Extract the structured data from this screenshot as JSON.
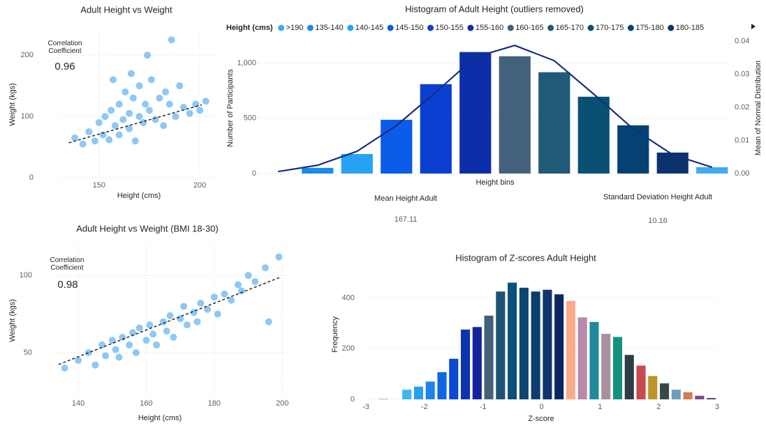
{
  "chart_data": [
    {
      "type": "scatter",
      "title": "Adult Height vs Weight",
      "x_label": "Height (cms)",
      "y_label": "Weight (kgs)",
      "annotation": "Correlation Coefficient",
      "annotation_value": 0.96,
      "color": "#8dc8f6",
      "grid": true,
      "xlim": [
        130,
        210
      ],
      "xticks": [
        150,
        200
      ],
      "ylim": [
        0,
        240
      ],
      "yticks": [
        0,
        100,
        200
      ],
      "x": [
        138,
        142,
        145,
        148,
        150,
        152,
        153,
        155,
        156,
        158,
        160,
        160,
        162,
        163,
        165,
        165,
        167,
        168,
        170,
        170,
        172,
        173,
        175,
        176,
        178,
        180,
        182,
        183,
        185,
        188,
        190,
        192,
        195,
        198,
        200,
        203,
        157,
        166,
        174,
        186
      ],
      "y": [
        65,
        55,
        75,
        60,
        90,
        70,
        100,
        62,
        110,
        85,
        120,
        70,
        95,
        140,
        80,
        105,
        130,
        60,
        100,
        150,
        90,
        120,
        110,
        160,
        95,
        130,
        85,
        140,
        120,
        100,
        150,
        115,
        105,
        120,
        110,
        125,
        160,
        170,
        200,
        225
      ],
      "trendline": {
        "color": "#252423",
        "x": [
          135,
          201
        ],
        "y": [
          57,
          119
        ]
      }
    },
    {
      "type": "bar",
      "title": "Histogram of Adult Height (outliers removed)",
      "x_label": "Height bins",
      "y_label": "Number of Participants",
      "y2_label": "Mean of Normal Distribution",
      "legend_title": "Height (cms)",
      "grid": true,
      "categories": [
        null,
        "135-140",
        "140-145",
        "145-150",
        "150-155",
        "155-160",
        "160-165",
        "165-170",
        "170-175",
        "175-180",
        "180-185",
        ">190"
      ],
      "ylim": [
        0,
        1200
      ],
      "yticks": [
        0,
        500,
        {
          "value": 1000,
          "label": "1,000"
        }
      ],
      "y2lim": [
        0,
        0.04
      ],
      "y2ticks": [
        {
          "value": 0,
          "label": "0.00"
        },
        {
          "value": 0.01,
          "label": "0.01"
        },
        {
          "value": 0.02,
          "label": "0.02"
        },
        {
          "value": 0.03,
          "label": "0.03"
        },
        {
          "value": 0.04,
          "label": "0.04"
        }
      ],
      "series": [
        {
          "values": [
            null,
            51,
            177,
            487,
            810,
            1101,
            1063,
            918,
            696,
            437,
            190,
            57
          ],
          "colors": [
            null,
            "#1a8cf0",
            "#27a2f5",
            "#0b5ce8",
            "#0b3fd1",
            "#0c2ea8",
            "#44617b",
            "#215a78",
            "#0a5075",
            "#064173",
            "#0c326b",
            "#41a9f0"
          ]
        },
        {
          "axis": "y2",
          "color": "#12307c",
          "values": [
            0.0006,
            0.0025,
            0.0067,
            0.0145,
            0.0246,
            0.0352,
            0.0387,
            0.0341,
            0.024,
            0.0135,
            0.0057,
            0.0019
          ]
        }
      ]
    },
    {
      "type": "card",
      "label": "Mean Height Adult",
      "value": 167.11
    },
    {
      "type": "card",
      "label": "Standard Deviation Height Adult",
      "value": 10.16
    },
    {
      "type": "scatter",
      "title": "Adult Height vs Weight (BMI 18-30)",
      "x_label": "Height (cms)",
      "y_label": "Weight (kgs)",
      "annotation": "Correlation Coefficient",
      "annotation_value": 0.98,
      "color": "#8dc8f6",
      "grid": true,
      "xlim": [
        133,
        202
      ],
      "xticks": [
        140,
        160,
        180,
        200
      ],
      "ylim": [
        22,
        120
      ],
      "yticks": [
        50,
        100
      ],
      "x": [
        136,
        140,
        143,
        145,
        147,
        148,
        150,
        151,
        152,
        153,
        155,
        156,
        157,
        158,
        160,
        161,
        162,
        163,
        165,
        166,
        167,
        168,
        170,
        171,
        172,
        174,
        175,
        176,
        178,
        180,
        181,
        183,
        185,
        187,
        188,
        190,
        192,
        195,
        196,
        199
      ],
      "y": [
        40,
        45,
        50,
        42,
        55,
        48,
        58,
        52,
        47,
        60,
        55,
        63,
        50,
        66,
        58,
        68,
        62,
        55,
        70,
        64,
        74,
        60,
        72,
        80,
        68,
        76,
        70,
        82,
        78,
        86,
        75,
        88,
        84,
        94,
        90,
        100,
        96,
        105,
        70,
        112
      ],
      "trendline": {
        "color": "#252423",
        "x": [
          134.2,
          199.1
        ],
        "y": [
          42.3,
          98.6
        ]
      }
    },
    {
      "type": "histogram",
      "title": "Histogram of Z-scores Adult Height",
      "x_label": "Z-score",
      "y_label": "Frequency",
      "grid": true,
      "xlim": [
        -3,
        3
      ],
      "xticks": [
        -3,
        -2,
        -1,
        0,
        1,
        2,
        3
      ],
      "ylim": [
        0,
        500
      ],
      "yticks": [
        0,
        200,
        400
      ],
      "bins": [
        -2.8,
        -2.6,
        -2.4,
        -2.2,
        -2.0,
        -1.8,
        -1.6,
        -1.4,
        -1.2,
        -1.0,
        -0.8,
        -0.6,
        -0.4,
        -0.2,
        0,
        0.2,
        0.4,
        0.6,
        0.8,
        1.0,
        1.2,
        1.4,
        1.6,
        1.8,
        2.0,
        2.2,
        2.4,
        2.6,
        2.8,
        3.0
      ],
      "values": [
        2,
        0,
        38,
        50,
        70,
        107,
        160,
        275,
        285,
        330,
        425,
        460,
        440,
        425,
        432,
        414,
        388,
        323,
        305,
        258,
        246,
        175,
        133,
        92,
        63,
        38,
        28,
        14,
        5
      ],
      "colors": [
        "#41b6f0",
        "#41b6f0",
        "#41b6f0",
        "#2aa0f0",
        "#1f84e8",
        "#0f68e2",
        "#0b4ad2",
        "#0c34b0",
        "#13249c",
        "#44617b",
        "#1e5274",
        "#0b5078",
        "#0a4670",
        "#0c3d70",
        "#0e3470",
        "#0c2660",
        "#f8ac8a",
        "#b889a8",
        "#1e8a9c",
        "#a9909f",
        "#15917e",
        "#2d3b42",
        "#c74b4e",
        "#bf9426",
        "#3a4649",
        "#6f9fb6",
        "#d77b4f",
        "#7d4c84",
        "#3d3c6d"
      ]
    }
  ]
}
